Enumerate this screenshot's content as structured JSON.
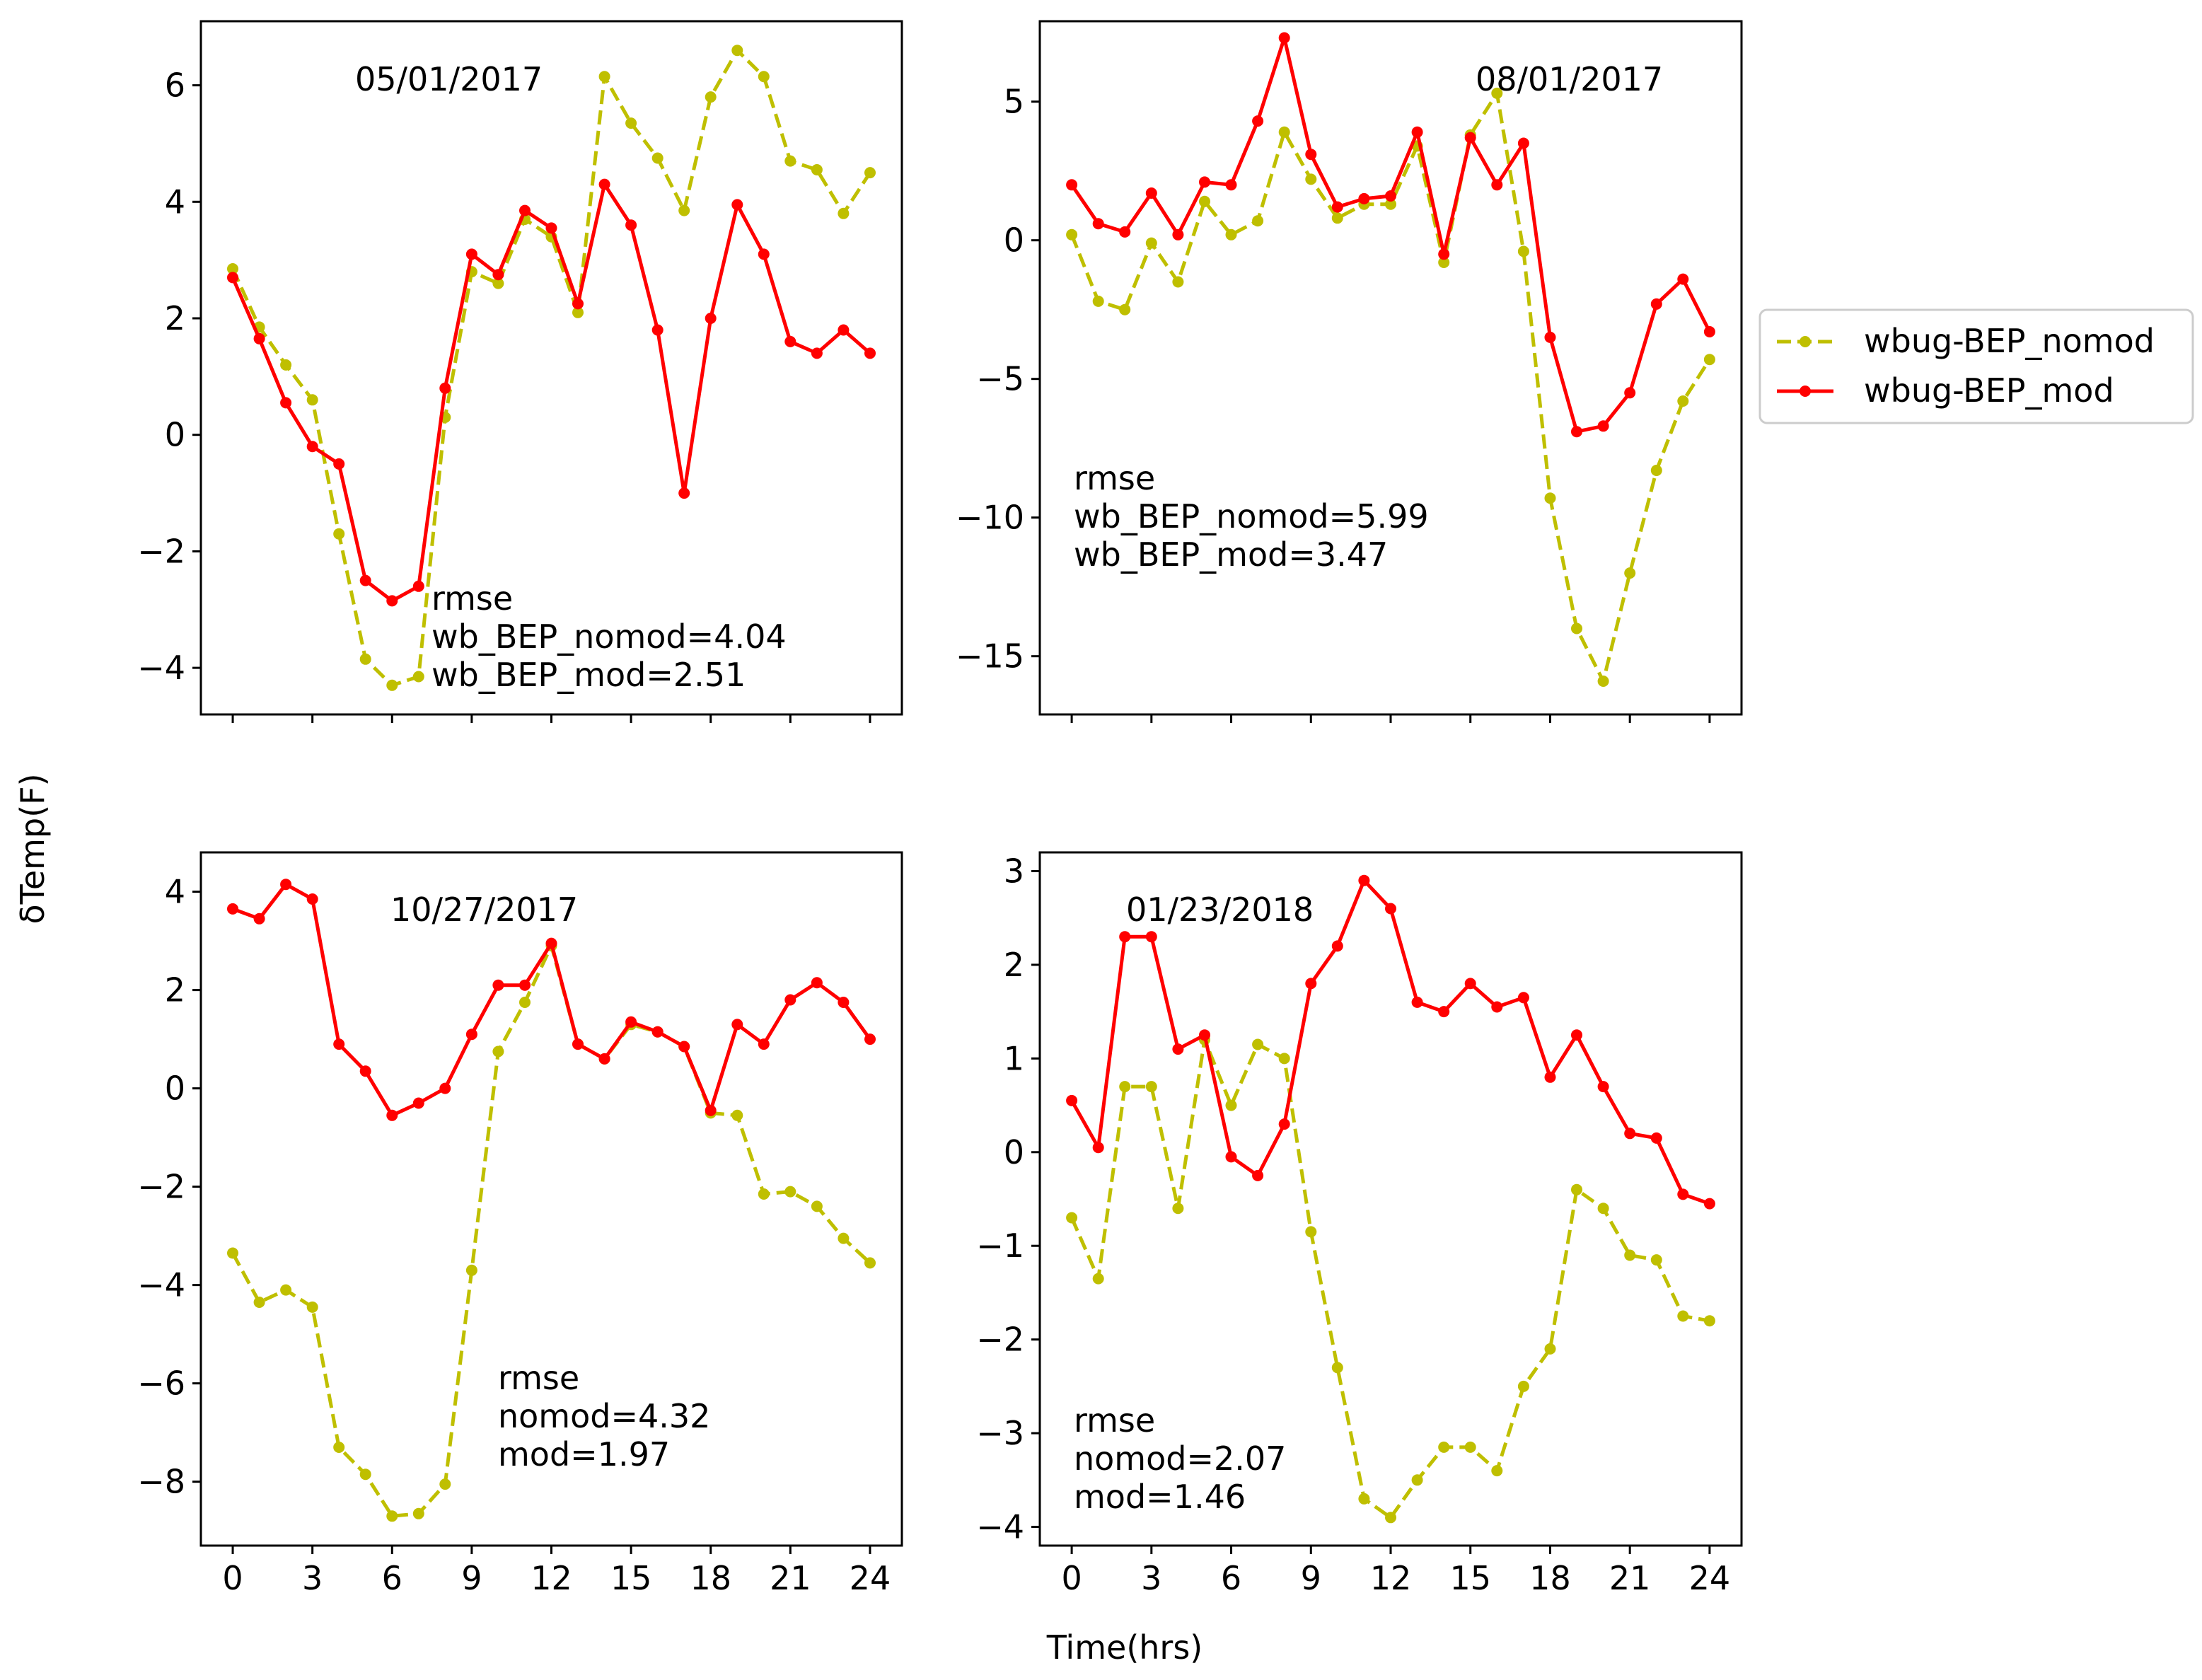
{
  "figure": {
    "ylabel": "δTemp(F)",
    "xlabel": "Time(hrs)"
  },
  "legend": {
    "items": [
      {
        "label": "wbug-BEP_nomod",
        "color": "#bfbf00",
        "dashed": true
      },
      {
        "label": "wbug-BEP_mod",
        "color": "#ff0000",
        "dashed": false
      }
    ]
  },
  "chart_data": [
    {
      "type": "line",
      "title": "05/01/2017",
      "x": [
        0,
        1,
        2,
        3,
        4,
        5,
        6,
        7,
        8,
        9,
        10,
        11,
        12,
        13,
        14,
        15,
        16,
        17,
        18,
        19,
        20,
        21,
        22,
        23,
        24
      ],
      "xticks": [
        0,
        3,
        6,
        9,
        12,
        15,
        18,
        21,
        24
      ],
      "xlim": [
        -1.2,
        25.2
      ],
      "ylim": [
        -4.8,
        7.1
      ],
      "yticks": [
        -4,
        -2,
        0,
        2,
        4,
        6
      ],
      "yticklabels": [
        "−4",
        "−2",
        "0",
        "2",
        "4",
        "6"
      ],
      "annotation": [
        "rmse",
        "wb_BEP_nomod=4.04",
        "wb_BEP_mod=2.51"
      ],
      "series": [
        {
          "name": "wbug-BEP_nomod",
          "color": "#bfbf00",
          "dashed": true,
          "values": [
            2.85,
            1.85,
            1.2,
            0.6,
            -1.7,
            -3.85,
            -4.3,
            -4.15,
            0.3,
            2.8,
            2.6,
            3.7,
            3.4,
            2.1,
            6.15,
            5.35,
            4.75,
            3.85,
            5.8,
            6.6,
            6.15,
            4.7,
            4.55,
            3.8,
            4.5
          ]
        },
        {
          "name": "wbug-BEP_mod",
          "color": "#ff0000",
          "dashed": false,
          "values": [
            2.7,
            1.65,
            0.55,
            -0.2,
            -0.5,
            -2.5,
            -2.85,
            -2.6,
            0.8,
            3.1,
            2.75,
            3.85,
            3.55,
            2.25,
            4.3,
            3.6,
            1.8,
            -1.0,
            2.0,
            3.95,
            3.1,
            1.6,
            1.4,
            1.8,
            1.4
          ]
        }
      ]
    },
    {
      "type": "line",
      "title": "08/01/2017",
      "x": [
        0,
        1,
        2,
        3,
        4,
        5,
        6,
        7,
        8,
        9,
        10,
        11,
        12,
        13,
        14,
        15,
        16,
        17,
        18,
        19,
        20,
        21,
        22,
        23,
        24
      ],
      "xticks": [
        0,
        3,
        6,
        9,
        12,
        15,
        18,
        21,
        24
      ],
      "xlim": [
        -1.2,
        25.2
      ],
      "ylim": [
        -17.1,
        7.9
      ],
      "yticks": [
        -15,
        -10,
        -5,
        0,
        5
      ],
      "yticklabels": [
        "−15",
        "−10",
        "−5",
        "0",
        "5"
      ],
      "annotation": [
        "rmse",
        "wb_BEP_nomod=5.99",
        "wb_BEP_mod=3.47"
      ],
      "series": [
        {
          "name": "wbug-BEP_nomod",
          "color": "#bfbf00",
          "dashed": true,
          "values": [
            0.2,
            -2.2,
            -2.5,
            -0.1,
            -1.5,
            1.4,
            0.2,
            0.7,
            3.9,
            2.2,
            0.8,
            1.3,
            1.3,
            3.4,
            -0.8,
            3.8,
            5.3,
            -0.4,
            -9.3,
            -14.0,
            -15.9,
            -12.0,
            -8.3,
            -5.8,
            -4.3
          ]
        },
        {
          "name": "wbug-BEP_mod",
          "color": "#ff0000",
          "dashed": false,
          "values": [
            2.0,
            0.6,
            0.3,
            1.7,
            0.2,
            2.1,
            2.0,
            4.3,
            7.3,
            3.1,
            1.2,
            1.5,
            1.6,
            3.9,
            -0.5,
            3.7,
            2.0,
            3.5,
            -3.5,
            -6.9,
            -6.7,
            -5.5,
            -2.3,
            -1.4,
            -3.3
          ]
        }
      ]
    },
    {
      "type": "line",
      "title": "10/27/2017",
      "x": [
        0,
        1,
        2,
        3,
        4,
        5,
        6,
        7,
        8,
        9,
        10,
        11,
        12,
        13,
        14,
        15,
        16,
        17,
        18,
        19,
        20,
        21,
        22,
        23,
        24
      ],
      "xticks": [
        0,
        3,
        6,
        9,
        12,
        15,
        18,
        21,
        24
      ],
      "xlim": [
        -1.2,
        25.2
      ],
      "ylim": [
        -9.3,
        4.8
      ],
      "yticks": [
        -8,
        -6,
        -4,
        -2,
        0,
        2,
        4
      ],
      "yticklabels": [
        "−8",
        "−6",
        "−4",
        "−2",
        "0",
        "2",
        "4"
      ],
      "annotation": [
        "rmse",
        "nomod=4.32",
        "mod=1.97"
      ],
      "series": [
        {
          "name": "wbug-BEP_nomod",
          "color": "#bfbf00",
          "dashed": true,
          "values": [
            -3.35,
            -4.35,
            -4.1,
            -4.45,
            -7.3,
            -7.85,
            -8.7,
            -8.65,
            -8.05,
            -3.7,
            0.75,
            1.75,
            2.9,
            0.9,
            0.6,
            1.3,
            1.15,
            0.85,
            -0.5,
            -0.55,
            -2.15,
            -2.1,
            -2.4,
            -3.05,
            -3.55
          ]
        },
        {
          "name": "wbug-BEP_mod",
          "color": "#ff0000",
          "dashed": false,
          "values": [
            3.65,
            3.45,
            4.15,
            3.85,
            0.9,
            0.35,
            -0.55,
            -0.3,
            0.0,
            1.1,
            2.1,
            2.1,
            2.95,
            0.9,
            0.6,
            1.35,
            1.15,
            0.85,
            -0.45,
            1.3,
            0.9,
            1.8,
            2.15,
            1.75,
            1.0
          ]
        }
      ]
    },
    {
      "type": "line",
      "title": "01/23/2018",
      "x": [
        0,
        1,
        2,
        3,
        4,
        5,
        6,
        7,
        8,
        9,
        10,
        11,
        12,
        13,
        14,
        15,
        16,
        17,
        18,
        19,
        20,
        21,
        22,
        23,
        24
      ],
      "xticks": [
        0,
        3,
        6,
        9,
        12,
        15,
        18,
        21,
        24
      ],
      "xlim": [
        -1.2,
        25.2
      ],
      "ylim": [
        -4.2,
        3.2
      ],
      "yticks": [
        -4,
        -3,
        -2,
        -1,
        0,
        1,
        2,
        3
      ],
      "yticklabels": [
        "−4",
        "−3",
        "−2",
        "−1",
        "0",
        "1",
        "2",
        "3"
      ],
      "annotation": [
        "rmse",
        "nomod=2.07",
        "mod=1.46"
      ],
      "series": [
        {
          "name": "wbug-BEP_nomod",
          "color": "#bfbf00",
          "dashed": true,
          "values": [
            -0.7,
            -1.35,
            0.7,
            0.7,
            -0.6,
            1.2,
            0.5,
            1.15,
            1.0,
            -0.85,
            -2.3,
            -3.7,
            -3.9,
            -3.5,
            -3.15,
            -3.15,
            -3.4,
            -2.5,
            -2.1,
            -0.4,
            -0.6,
            -1.1,
            -1.15,
            -1.75,
            -1.8
          ]
        },
        {
          "name": "wbug-BEP_mod",
          "color": "#ff0000",
          "dashed": false,
          "values": [
            0.55,
            0.05,
            2.3,
            2.3,
            1.1,
            1.25,
            -0.05,
            -0.25,
            0.3,
            1.8,
            2.2,
            2.9,
            2.6,
            1.6,
            1.5,
            1.8,
            1.55,
            1.65,
            0.8,
            1.25,
            0.7,
            0.2,
            0.15,
            -0.45,
            -0.55
          ]
        }
      ]
    }
  ]
}
